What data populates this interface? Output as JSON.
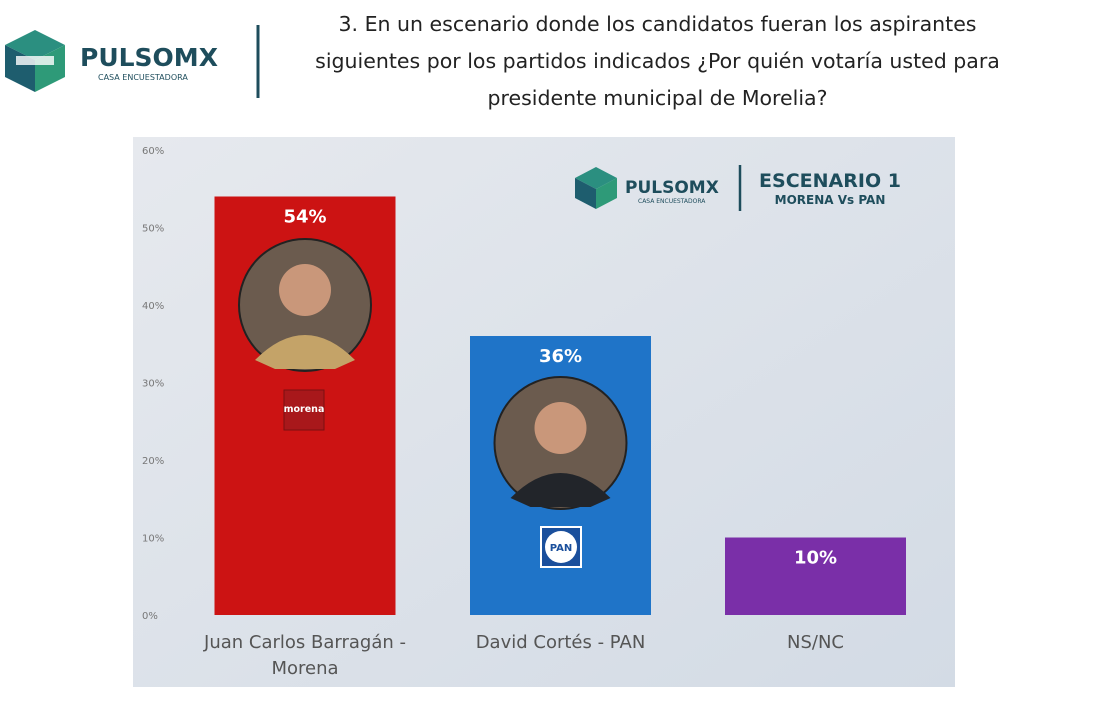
{
  "header": {
    "brand": "PULSOMX",
    "tagline": "CASA ENCUESTADORA"
  },
  "badge": {
    "brand": "PULSOMX",
    "tagline": "CASA ENCUESTADORA",
    "title": "ESCENARIO 1",
    "subtitle": "MORENA Vs PAN"
  },
  "logos": [
    "morena",
    "PAN"
  ],
  "chart_data": {
    "type": "bar",
    "title": "3. En un escenario donde los candidatos fueran los aspirantes siguientes por los partidos indicados ¿Por quién votaría usted para presidente municipal de Morelia?",
    "categories": [
      "Juan Carlos Barragán - Morena",
      "David Cortés - PAN",
      "NS/NC"
    ],
    "values": [
      54,
      36,
      10
    ],
    "value_labels": [
      "54%",
      "36%",
      "10%"
    ],
    "colors": [
      "#cc1313",
      "#1f74c8",
      "#7a2fa8"
    ],
    "ylim": [
      0,
      60
    ],
    "yticks": [
      {
        "value": 0,
        "label": "0%"
      },
      {
        "value": 10,
        "label": "10%"
      },
      {
        "value": 20,
        "label": "20%"
      },
      {
        "value": 30,
        "label": "30%"
      },
      {
        "value": 40,
        "label": "40%"
      },
      {
        "value": 50,
        "label": "50%"
      },
      {
        "value": 60,
        "label": "60%"
      }
    ],
    "grid": false
  }
}
